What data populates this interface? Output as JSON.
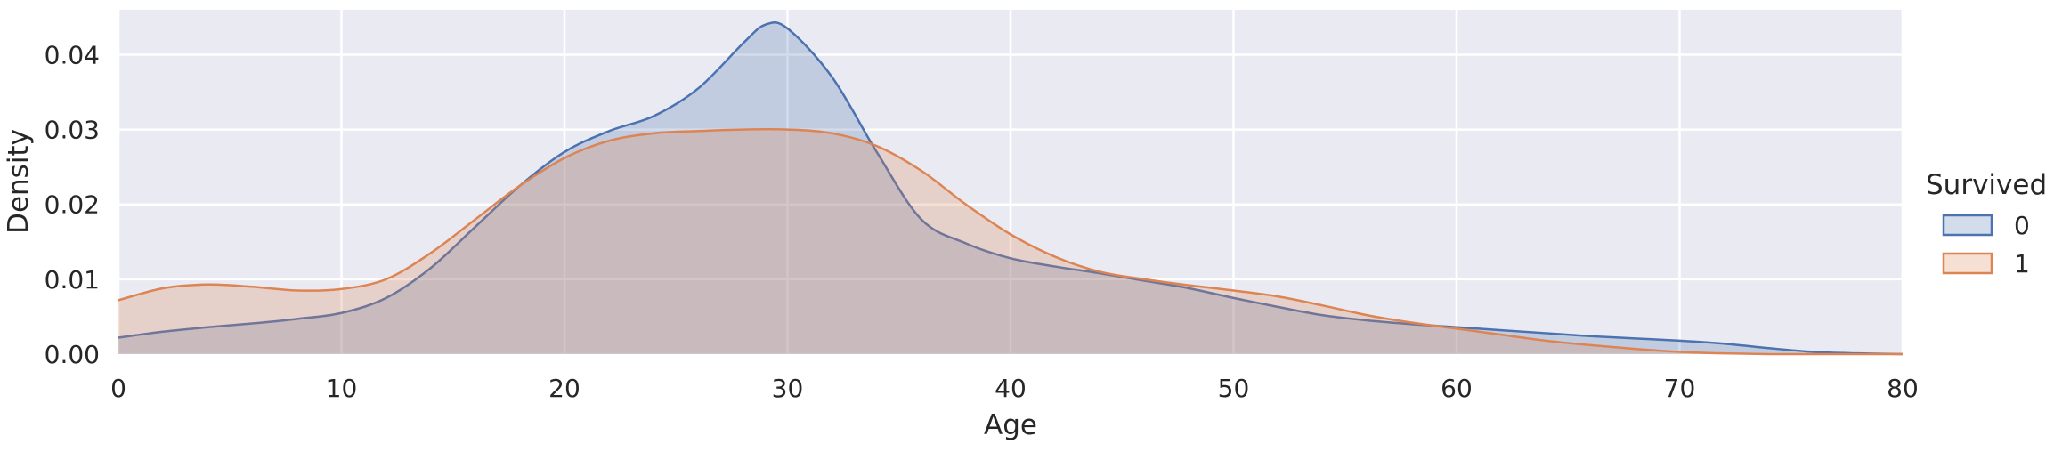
{
  "chart_data": {
    "type": "area",
    "title": "",
    "xlabel": "Age",
    "ylabel": "Density",
    "xlim": [
      0,
      80
    ],
    "ylim": [
      0,
      0.046
    ],
    "xticks": [
      0,
      10,
      20,
      30,
      40,
      50,
      60,
      70,
      80
    ],
    "xtick_labels": [
      "0",
      "10",
      "20",
      "30",
      "40",
      "50",
      "60",
      "70",
      "80"
    ],
    "yticks": [
      0,
      0.01,
      0.02,
      0.03,
      0.04
    ],
    "ytick_labels": [
      "0.00",
      "0.01",
      "0.02",
      "0.03",
      "0.04"
    ],
    "grid": true,
    "background": "#eaeaf2",
    "legend": {
      "title": "Survived",
      "placement": "right"
    },
    "series": [
      {
        "name": "0",
        "color": "#4c72b0",
        "x": [
          0,
          2,
          4,
          6,
          8,
          10,
          12,
          14,
          16,
          18,
          20,
          22,
          24,
          26,
          28,
          29,
          30,
          32,
          34,
          36,
          38,
          40,
          42,
          44,
          46,
          48,
          50,
          52,
          54,
          56,
          58,
          60,
          62,
          64,
          66,
          68,
          70,
          72,
          74,
          76,
          78,
          80
        ],
        "values": [
          0.0022,
          0.003,
          0.0036,
          0.0041,
          0.0047,
          0.0055,
          0.0075,
          0.0115,
          0.017,
          0.0225,
          0.027,
          0.0298,
          0.0318,
          0.0355,
          0.0415,
          0.044,
          0.0435,
          0.037,
          0.027,
          0.018,
          0.0148,
          0.0128,
          0.0117,
          0.0108,
          0.0098,
          0.0088,
          0.0075,
          0.0063,
          0.0052,
          0.0045,
          0.004,
          0.0036,
          0.0032,
          0.0028,
          0.0024,
          0.0021,
          0.0018,
          0.0014,
          0.0008,
          0.0003,
          0.0001,
          0.0
        ]
      },
      {
        "name": "1",
        "color": "#dd8452",
        "x": [
          0,
          2,
          4,
          6,
          8,
          10,
          12,
          14,
          16,
          18,
          20,
          22,
          24,
          26,
          28,
          30,
          32,
          34,
          36,
          38,
          40,
          42,
          44,
          46,
          48,
          50,
          52,
          54,
          56,
          58,
          60,
          62,
          64,
          66,
          68,
          70,
          72,
          74,
          76,
          78,
          80
        ],
        "values": [
          0.0072,
          0.0088,
          0.0093,
          0.009,
          0.0085,
          0.0087,
          0.01,
          0.0135,
          0.018,
          0.0225,
          0.0262,
          0.0285,
          0.0295,
          0.0298,
          0.03,
          0.03,
          0.0295,
          0.0278,
          0.0245,
          0.02,
          0.016,
          0.013,
          0.011,
          0.01,
          0.0092,
          0.0085,
          0.0077,
          0.0065,
          0.0052,
          0.0042,
          0.0034,
          0.0026,
          0.0018,
          0.0012,
          0.0007,
          0.0003,
          0.0001,
          0.0,
          0.0,
          0.0,
          0.0
        ]
      }
    ]
  }
}
